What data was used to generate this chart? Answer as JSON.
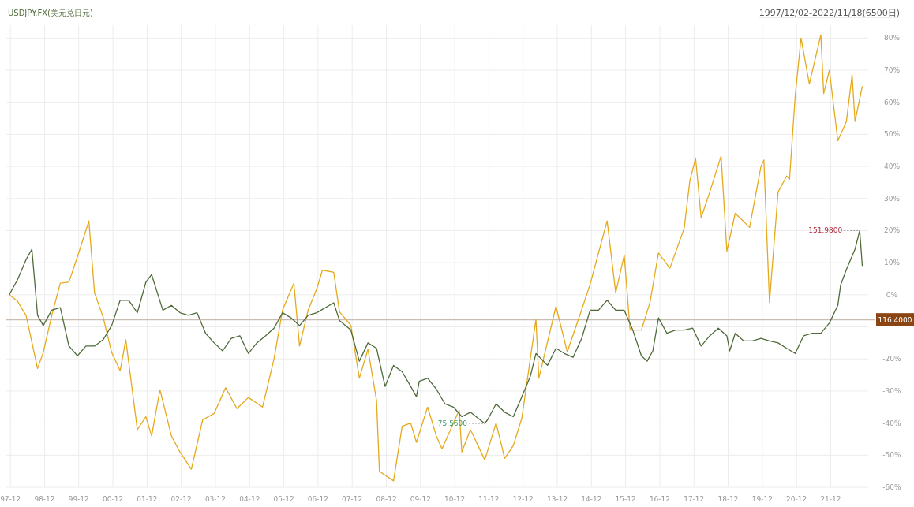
{
  "chart_data": {
    "type": "line",
    "subtitle": "1997/12/02-2022/11/18(6500日)",
    "legend": "top left",
    "grid": true,
    "xlim": [
      "1997-11-01",
      "2023-01-20"
    ],
    "xticks": [
      {
        "value": "1997-12-15",
        "label": "97-12"
      },
      {
        "value": "1998-12-15",
        "label": "98-12"
      },
      {
        "value": "1999-12-15",
        "label": "99-12"
      },
      {
        "value": "2000-12-15",
        "label": "00-12"
      },
      {
        "value": "2001-12-15",
        "label": "01-12"
      },
      {
        "value": "2002-12-15",
        "label": "02-12"
      },
      {
        "value": "2003-12-15",
        "label": "03-12"
      },
      {
        "value": "2004-12-15",
        "label": "04-12"
      },
      {
        "value": "2005-12-15",
        "label": "05-12"
      },
      {
        "value": "2006-12-15",
        "label": "06-12"
      },
      {
        "value": "2007-12-15",
        "label": "07-12"
      },
      {
        "value": "2008-12-15",
        "label": "08-12"
      },
      {
        "value": "2009-12-15",
        "label": "09-12"
      },
      {
        "value": "2010-12-15",
        "label": "10-12"
      },
      {
        "value": "2011-12-15",
        "label": "11-12"
      },
      {
        "value": "2012-12-15",
        "label": "12-12"
      },
      {
        "value": "2013-12-15",
        "label": "13-12"
      },
      {
        "value": "2014-12-15",
        "label": "14-12"
      },
      {
        "value": "2015-12-15",
        "label": "15-12"
      },
      {
        "value": "2016-12-15",
        "label": "16-12"
      },
      {
        "value": "2017-12-15",
        "label": "17-12"
      },
      {
        "value": "2018-12-15",
        "label": "18-12"
      },
      {
        "value": "2019-12-15",
        "label": "19-12"
      },
      {
        "value": "2020-12-15",
        "label": "20-12"
      },
      {
        "value": "2021-12-15",
        "label": "21-12"
      }
    ],
    "ylim": [
      -60,
      84
    ],
    "yticks": [
      {
        "value": -60,
        "label": "-60%"
      },
      {
        "value": -50,
        "label": "-50%"
      },
      {
        "value": -40,
        "label": "-40%"
      },
      {
        "value": -30,
        "label": "-30%"
      },
      {
        "value": -20,
        "label": "-20%"
      },
      {
        "value": -10,
        "label": null
      },
      {
        "value": 0,
        "label": "0%"
      },
      {
        "value": 10,
        "label": "10%"
      },
      {
        "value": 20,
        "label": "20%"
      },
      {
        "value": 30,
        "label": "30%"
      },
      {
        "value": 40,
        "label": "40%"
      },
      {
        "value": 50,
        "label": "50%"
      },
      {
        "value": 60,
        "label": "60%"
      },
      {
        "value": 70,
        "label": "70%"
      },
      {
        "value": 80,
        "label": "80%"
      }
    ],
    "series": [
      {
        "color": "#e6a91e",
        "x": [
          "1997-12-02",
          "1998-03",
          "1998-06",
          "1998-10",
          "1998-12",
          "1999-03",
          "1999-06",
          "1999-09",
          "1999-12",
          "2000-04",
          "2000-06",
          "2000-09",
          "2000-12",
          "2001-03",
          "2001-05",
          "2001-09",
          "2001-12",
          "2002-02",
          "2002-05",
          "2002-09",
          "2002-12",
          "2003-04",
          "2003-08",
          "2003-12",
          "2004-04",
          "2004-08",
          "2004-12",
          "2005-05",
          "2005-09",
          "2005-12",
          "2006-04",
          "2006-06",
          "2006-09",
          "2006-12",
          "2007-02",
          "2007-06",
          "2007-08",
          "2007-12",
          "2008-03",
          "2008-06",
          "2008-09",
          "2008-10",
          "2009-03",
          "2009-06",
          "2009-09",
          "2009-11",
          "2010-03",
          "2010-06",
          "2010-08",
          "2010-12",
          "2011-02",
          "2011-03",
          "2011-06",
          "2011-11",
          "2012-03",
          "2012-06",
          "2012-09",
          "2012-12",
          "2013-05",
          "2013-06",
          "2013-12",
          "2014-04",
          "2014-09",
          "2014-12",
          "2015-06",
          "2015-09",
          "2015-12",
          "2016-02",
          "2016-06",
          "2016-09",
          "2016-12",
          "2017-04",
          "2017-09",
          "2017-11",
          "2018-01",
          "2018-03",
          "2018-06",
          "2018-10",
          "2018-12",
          "2019-03",
          "2019-08",
          "2019-12",
          "2020-01",
          "2020-03",
          "2020-06",
          "2020-09",
          "2020-10",
          "2020-12",
          "2021-02",
          "2021-05",
          "2021-09",
          "2021-10",
          "2021-12",
          "2022-03",
          "2022-06",
          "2022-08",
          "2022-09",
          "2022-11-18"
        ],
        "values": [
          0,
          -2,
          -6.5,
          -23,
          -18,
          -6.5,
          3.6,
          4,
          11.8,
          23,
          0.6,
          -7,
          -18,
          -23.7,
          -14,
          -42,
          -38,
          -44,
          -29.6,
          -44,
          -49,
          -54.4,
          -39,
          -37,
          -29,
          -35.5,
          -32,
          -35,
          -20,
          -4.7,
          3.6,
          -16,
          -4.7,
          1.8,
          7.7,
          7,
          -5.3,
          -9.5,
          -26,
          -17,
          -33,
          -55,
          -58,
          -41,
          -40,
          -46,
          -35,
          -44,
          -48,
          -40,
          -36,
          -49,
          -42,
          -51.5,
          -40,
          -51,
          -47,
          -38.5,
          -7.7,
          -26,
          -3.6,
          -17.8,
          -4.7,
          3.3,
          23,
          0.6,
          12.4,
          -11,
          -11,
          -2.4,
          13,
          8.3,
          20.7,
          35.5,
          42.6,
          24,
          32,
          43.2,
          13.6,
          25.4,
          21,
          40,
          42,
          -2.4,
          32,
          37,
          36,
          62,
          80,
          65.7,
          81,
          62.7,
          70,
          48,
          54,
          68.6,
          54,
          65
        ]
      },
      {
        "name": "USDJPY.FX(美元兑日元)",
        "color": "#4f6b3a",
        "x": [
          "1997-12-02",
          "1998-03",
          "1998-06",
          "1998-08",
          "1998-10",
          "1998-12",
          "1999-03",
          "1999-06",
          "1999-09",
          "1999-12",
          "2000-03",
          "2000-06",
          "2000-09",
          "2000-12",
          "2001-03",
          "2001-06",
          "2001-09",
          "2001-12",
          "2002-02",
          "2002-06",
          "2002-09",
          "2002-12",
          "2003-03",
          "2003-06",
          "2003-09",
          "2003-12",
          "2004-03",
          "2004-06",
          "2004-09",
          "2004-12",
          "2005-03",
          "2005-06",
          "2005-09",
          "2005-12",
          "2006-03",
          "2006-06",
          "2006-09",
          "2006-12",
          "2007-06",
          "2007-08",
          "2007-12",
          "2008-03",
          "2008-06",
          "2008-09",
          "2008-12",
          "2009-03",
          "2009-06",
          "2009-09",
          "2009-11",
          "2009-12",
          "2010-03",
          "2010-06",
          "2010-09",
          "2010-12",
          "2011-03",
          "2011-06",
          "2011-10-31",
          "2011-12",
          "2012-03",
          "2012-06",
          "2012-09",
          "2012-12",
          "2013-03",
          "2013-05",
          "2013-09",
          "2013-12",
          "2014-03",
          "2014-06",
          "2014-09",
          "2014-12",
          "2015-03",
          "2015-06",
          "2015-09",
          "2015-12",
          "2016-03",
          "2016-06",
          "2016-08",
          "2016-10",
          "2016-12",
          "2017-03",
          "2017-06",
          "2017-09",
          "2017-12",
          "2018-03",
          "2018-06",
          "2018-09",
          "2018-12",
          "2019-01",
          "2019-03",
          "2019-06",
          "2019-09",
          "2019-12",
          "2020-03",
          "2020-06",
          "2020-09",
          "2020-12",
          "2021-03",
          "2021-06",
          "2021-09",
          "2021-12",
          "2022-03",
          "2022-04",
          "2022-06",
          "2022-09",
          "2022-10-21",
          "2022-11-18"
        ],
        "values": [
          0,
          4.7,
          11,
          14.2,
          -6.4,
          -9.6,
          -4.8,
          -4,
          -16,
          -19,
          -16,
          -16,
          -14,
          -9.6,
          -1.7,
          -1.7,
          -5.6,
          3.9,
          6.3,
          -4.8,
          -3.3,
          -5.6,
          -6.4,
          -5.6,
          -12,
          -15,
          -17.5,
          -13.6,
          -12.8,
          -18.3,
          -15,
          -12.8,
          -10.4,
          -5.6,
          -7.2,
          -9.6,
          -6.4,
          -5.6,
          -2.5,
          -8,
          -11,
          -20.7,
          -15,
          -16.7,
          -28.6,
          -22,
          -24,
          -28.6,
          -31.8,
          -27,
          -26,
          -29.4,
          -34,
          -35,
          -38,
          -36.6,
          -40.1,
          -39,
          -34,
          -36.6,
          -38,
          -31.8,
          -25.5,
          -18.3,
          -22,
          -16.7,
          -18.3,
          -19.5,
          -13.6,
          -4.8,
          -4.8,
          -1.7,
          -4.8,
          -4.8,
          -11,
          -19,
          -20.7,
          -17.5,
          -7.2,
          -12,
          -11,
          -11,
          -10.4,
          -16,
          -12.8,
          -10.4,
          -12.8,
          -17.5,
          -12,
          -14.4,
          -14.4,
          -13.6,
          -14.4,
          -15,
          -16.7,
          -18.3,
          -12.8,
          -12,
          -12,
          -8.8,
          -3.3,
          3.1,
          7.9,
          14.2,
          20,
          9
        ]
      }
    ],
    "ref_lines": [
      {
        "axis": "y",
        "value": -7.7,
        "color": "#c9bdb3"
      }
    ],
    "annotations": [
      "116.4000",
      {
        "text": "151.9800",
        "x": "2022-10-21",
        "y": 20
      },
      {
        "text": "75.5600",
        "x": "2011-10-31",
        "y": -40.1
      }
    ]
  }
}
